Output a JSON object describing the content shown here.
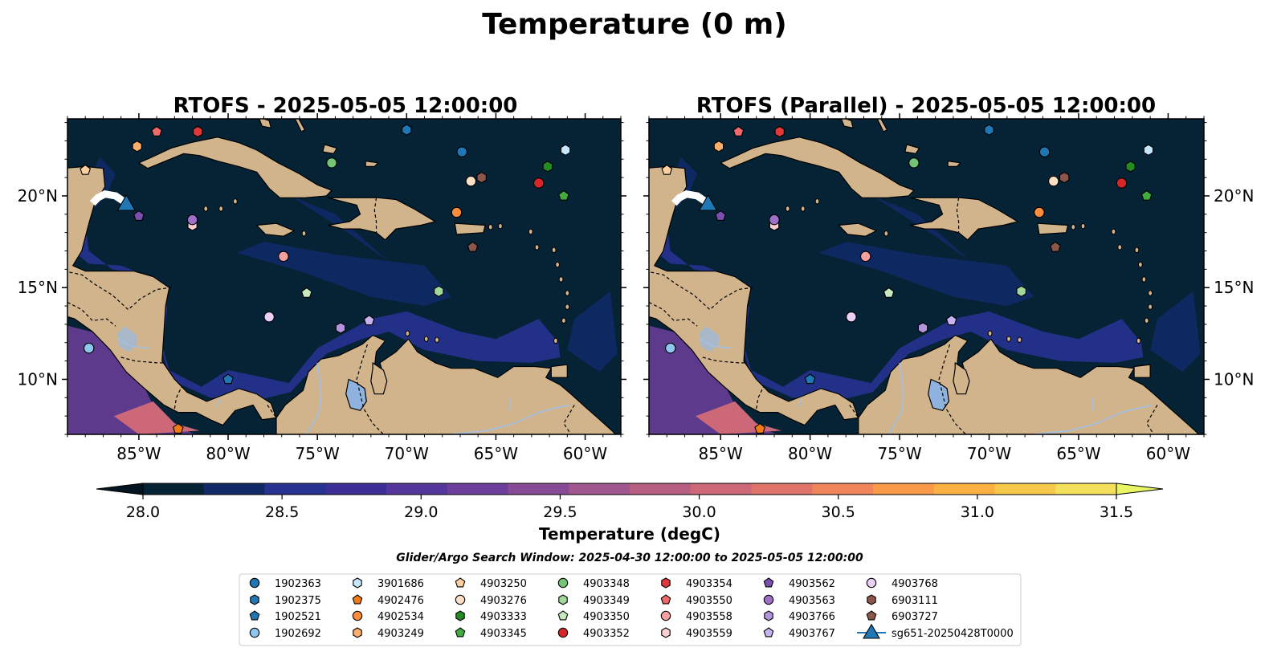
{
  "figure": {
    "title": "Temperature (0 m)",
    "window_note": "Glider/Argo Search Window: 2025-04-30 12:00:00 to 2025-05-05 12:00:00"
  },
  "colors": {
    "land": "#d2b48c",
    "ocean_base": "#062235",
    "coast": "#000000",
    "rivers": "#a5bfdd",
    "lake": "#8fb2df"
  },
  "colormap": {
    "label": "Temperature (degC)",
    "min": 28.0,
    "max": 31.5,
    "step": 0.25,
    "tick_labels": [
      "28.0",
      "28.5",
      "29.0",
      "29.5",
      "30.0",
      "30.5",
      "31.0",
      "31.5"
    ],
    "colors": [
      "#062235",
      "#102a68",
      "#273291",
      "#3b2f97",
      "#55379c",
      "#6e3e9c",
      "#874b96",
      "#a0568e",
      "#b65f82",
      "#cc6877",
      "#e0746a",
      "#f0855b",
      "#f89a48",
      "#fab043",
      "#f6c94b",
      "#f4e05c"
    ],
    "under_color": "#041420",
    "over_color": "#e9f563"
  },
  "chart_data": [
    {
      "type": "scatter",
      "title": "RTOFS - 2025-05-05 12:00:00",
      "xlim": [
        -89,
        -58
      ],
      "ylim": [
        7,
        24.2
      ],
      "x_ticks": [
        -85,
        -80,
        -75,
        -70,
        -65,
        -60
      ],
      "x_tick_labels": [
        "85°W",
        "80°W",
        "75°W",
        "70°W",
        "65°W",
        "60°W"
      ],
      "y_ticks": [
        10,
        15,
        20
      ],
      "y_tick_labels": [
        "10°N",
        "15°N",
        "20°N"
      ],
      "y_tick_side": "left"
    },
    {
      "type": "scatter",
      "title": "RTOFS (Parallel) - 2025-05-05 12:00:00",
      "xlim": [
        -89,
        -58
      ],
      "ylim": [
        7,
        24.2
      ],
      "x_ticks": [
        -85,
        -80,
        -75,
        -70,
        -65,
        -60
      ],
      "x_tick_labels": [
        "85°W",
        "80°W",
        "75°W",
        "70°W",
        "65°W",
        "60°W"
      ],
      "y_ticks": [
        10,
        15,
        20
      ],
      "y_tick_labels": [
        "10°N",
        "15°N",
        "20°N"
      ],
      "y_tick_side": "right"
    }
  ],
  "floats": [
    {
      "id": "1902363",
      "marker": "circle",
      "color": "#1f77b4",
      "lon": -66.9,
      "lat": 22.4
    },
    {
      "id": "1902375",
      "marker": "hexagon",
      "color": "#1f77b4",
      "lon": -70.0,
      "lat": 23.6
    },
    {
      "id": "1902521",
      "marker": "pentagon",
      "color": "#1f77b4",
      "lon": -80.0,
      "lat": 10.0
    },
    {
      "id": "1902692",
      "marker": "circle",
      "color": "#8ec8ee",
      "lon": -87.8,
      "lat": 11.7
    },
    {
      "id": "3901686",
      "marker": "hexagon",
      "color": "#c6e7fb",
      "lon": -61.1,
      "lat": 22.5
    },
    {
      "id": "4902476",
      "marker": "pentagon",
      "color": "#f07b15",
      "lon": -82.8,
      "lat": 7.3
    },
    {
      "id": "4902534",
      "marker": "circle",
      "color": "#fd8d3c",
      "lon": -67.2,
      "lat": 19.1
    },
    {
      "id": "4903249",
      "marker": "hexagon",
      "color": "#fdae6b",
      "lon": -85.1,
      "lat": 22.7
    },
    {
      "id": "4903250",
      "marker": "pentagon",
      "color": "#fdd0a2",
      "lon": -88.0,
      "lat": 21.4
    },
    {
      "id": "4903276",
      "marker": "circle",
      "color": "#fde0c5",
      "lon": -66.4,
      "lat": 20.8
    },
    {
      "id": "4903333",
      "marker": "hexagon",
      "color": "#238b22",
      "lon": -62.1,
      "lat": 21.6
    },
    {
      "id": "4903345",
      "marker": "pentagon",
      "color": "#41ab3d",
      "lon": -61.2,
      "lat": 20.0
    },
    {
      "id": "4903348",
      "marker": "circle",
      "color": "#74c476",
      "lon": -74.2,
      "lat": 21.8
    },
    {
      "id": "4903349",
      "marker": "hexagon",
      "color": "#a1d99b",
      "lon": -68.2,
      "lat": 14.8
    },
    {
      "id": "4903350",
      "marker": "pentagon",
      "color": "#c7e9c0",
      "lon": -75.6,
      "lat": 14.7
    },
    {
      "id": "4903352",
      "marker": "circle",
      "color": "#d62728",
      "lon": -62.6,
      "lat": 20.7
    },
    {
      "id": "4903354",
      "marker": "hexagon",
      "color": "#e0393b",
      "lon": -81.7,
      "lat": 23.5
    },
    {
      "id": "4903550",
      "marker": "pentagon",
      "color": "#f0696a",
      "lon": -84.0,
      "lat": 23.5
    },
    {
      "id": "4903558",
      "marker": "circle",
      "color": "#f7a0a0",
      "lon": -76.9,
      "lat": 16.7
    },
    {
      "id": "4903559",
      "marker": "hexagon",
      "color": "#fbcfcf",
      "lon": -82.0,
      "lat": 18.4
    },
    {
      "id": "4903562",
      "marker": "pentagon",
      "color": "#7b4fb0",
      "lon": -85.0,
      "lat": 18.9
    },
    {
      "id": "4903563",
      "marker": "circle",
      "color": "#9e70c8",
      "lon": -82.0,
      "lat": 18.7
    },
    {
      "id": "4903766",
      "marker": "hexagon",
      "color": "#b494de",
      "lon": -73.7,
      "lat": 12.8
    },
    {
      "id": "4903767",
      "marker": "pentagon",
      "color": "#c7b3f0",
      "lon": -72.1,
      "lat": 13.2
    },
    {
      "id": "4903768",
      "marker": "circle",
      "color": "#ead0f5",
      "lon": -77.7,
      "lat": 13.4
    },
    {
      "id": "6903111",
      "marker": "hexagon",
      "color": "#8c564b",
      "lon": -65.8,
      "lat": 21.0
    },
    {
      "id": "6903727",
      "marker": "pentagon",
      "color": "#8c564b",
      "lon": -66.3,
      "lat": 17.2
    }
  ],
  "glider": {
    "id": "sg651-20250428T0000",
    "marker": "triangle",
    "color": "#1f77b4",
    "lon": -85.7,
    "lat": 19.6
  }
}
